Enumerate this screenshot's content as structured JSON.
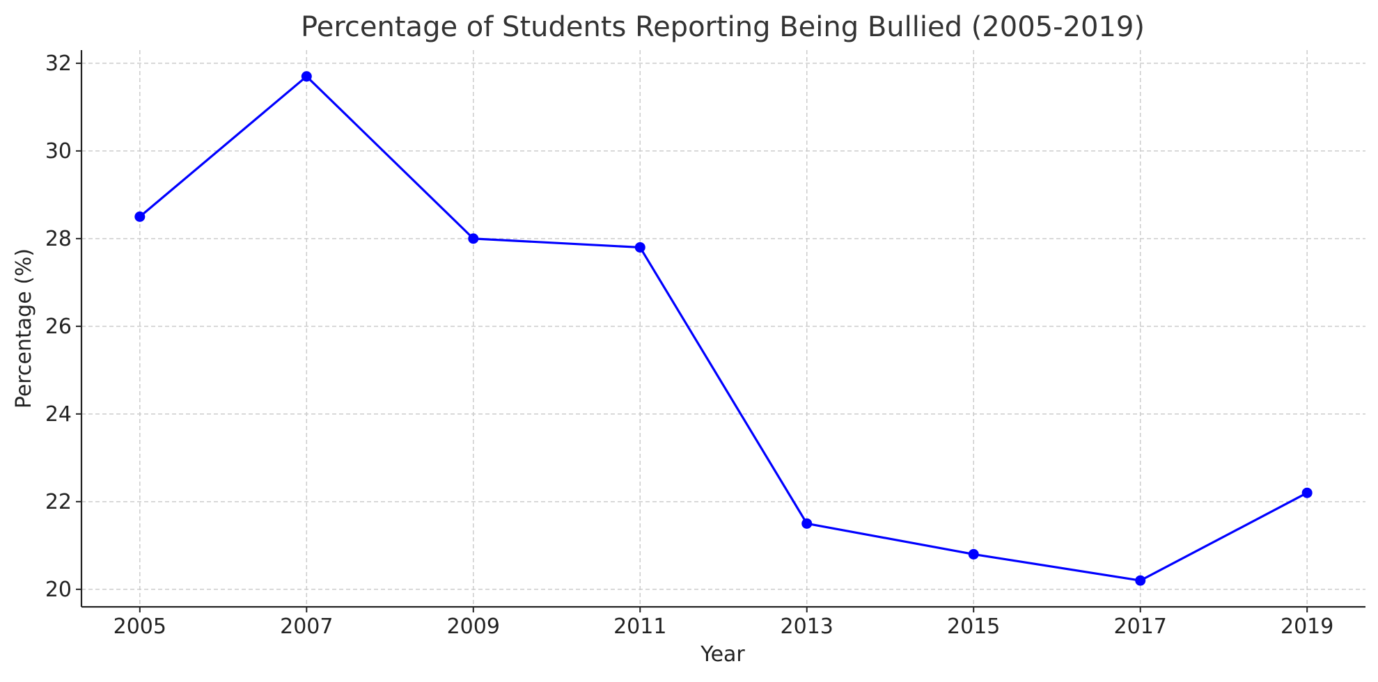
{
  "chart_data": {
    "type": "line",
    "title": "Percentage of Students Reporting Being Bullied (2005-2019)",
    "xlabel": "Year",
    "ylabel": "Percentage (%)",
    "x": [
      2005,
      2007,
      2009,
      2011,
      2013,
      2015,
      2017,
      2019
    ],
    "series": [
      {
        "values": [
          28.5,
          31.7,
          28.0,
          27.8,
          21.5,
          20.8,
          20.2,
          22.2
        ],
        "color": "#0000ff",
        "marker": "circle"
      }
    ],
    "xticks": [
      "2005",
      "2007",
      "2009",
      "2011",
      "2013",
      "2015",
      "2017",
      "2019"
    ],
    "yticks": [
      "20",
      "22",
      "24",
      "26",
      "28",
      "30",
      "32"
    ],
    "xlim": [
      2004.3,
      2019.7
    ],
    "ylim": [
      19.6,
      32.3
    ],
    "grid": true,
    "legend": "none"
  }
}
